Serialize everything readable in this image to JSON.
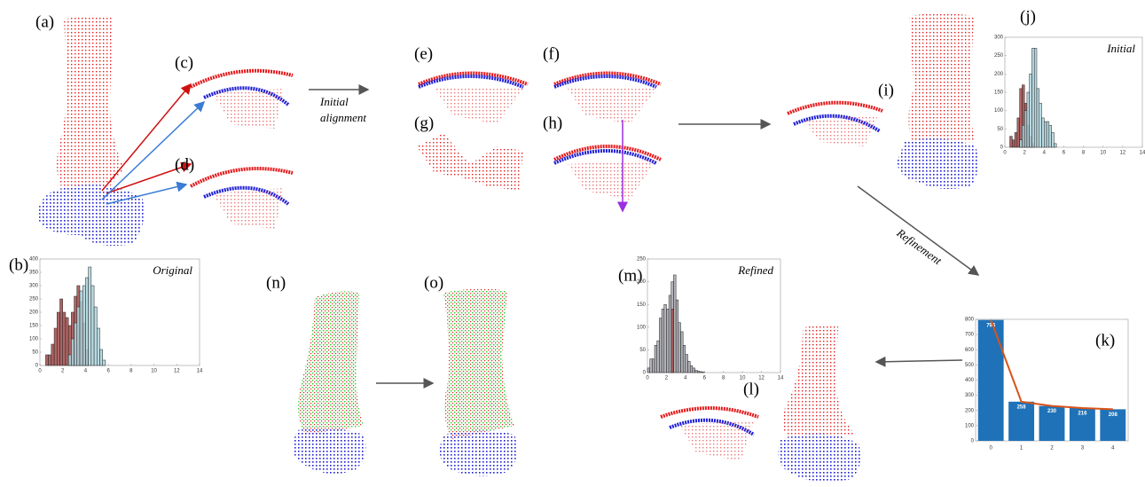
{
  "panels": [
    "(a)",
    "(b)",
    "(c)",
    "(d)",
    "(e)",
    "(f)",
    "(g)",
    "(h)",
    "(i)",
    "(j)",
    "(k)",
    "(l)",
    "(m)",
    "(n)",
    "(o)"
  ],
  "annotations": {
    "initial_alignment": [
      "Initial",
      "alignment"
    ],
    "refinement": "Refinement"
  },
  "chart_data": [
    {
      "type": "histogram",
      "annotation": "Original",
      "bins": [
        0.5,
        0.75,
        1,
        1.25,
        1.5,
        1.75,
        2,
        2.25,
        2.5,
        2.75,
        3,
        3.25,
        3.5,
        3.75,
        4,
        4.25,
        4.5,
        4.75,
        5,
        5.25,
        5.5,
        5.75,
        6
      ],
      "series": [
        {
          "color": "#a04a4a",
          "values": [
            40,
            40,
            80,
            140,
            200,
            250,
            200,
            180,
            150,
            200,
            260,
            300,
            240,
            160,
            60,
            0,
            0,
            0,
            0,
            0,
            0,
            0
          ]
        },
        {
          "color": "#add3dd",
          "values": [
            0,
            0,
            0,
            0,
            0,
            0,
            0,
            0,
            40,
            100,
            160,
            220,
            280,
            300,
            330,
            370,
            300,
            220,
            140,
            60,
            20,
            0
          ]
        }
      ],
      "xlim": [
        0,
        14
      ],
      "xticks": [
        0,
        2,
        4,
        6,
        8,
        10,
        12,
        14
      ],
      "ylim": [
        0,
        400
      ],
      "yticks": [
        0,
        50,
        100,
        150,
        200,
        250,
        300,
        350,
        400
      ]
    },
    {
      "type": "histogram",
      "annotation": "Initial",
      "bins": [
        0.5,
        0.75,
        1,
        1.25,
        1.5,
        1.75,
        2,
        2.25,
        2.5,
        2.75,
        3,
        3.25,
        3.5,
        3.75,
        4,
        4.25,
        4.5,
        4.75,
        5,
        5.25,
        5.5,
        5.75,
        6,
        6.25,
        6.5
      ],
      "series": [
        {
          "color": "#a04a4a",
          "values": [
            30,
            20,
            40,
            80,
            160,
            170,
            120,
            60,
            30,
            10,
            0,
            0,
            0,
            0,
            0,
            0,
            0,
            0,
            0,
            0,
            0,
            0,
            0,
            0
          ]
        },
        {
          "color": "#add3dd",
          "values": [
            0,
            0,
            0,
            0,
            20,
            60,
            100,
            150,
            200,
            270,
            270,
            160,
            120,
            80,
            70,
            70,
            60,
            40,
            10,
            0,
            0,
            0,
            0,
            0
          ]
        }
      ],
      "xlim": [
        0,
        14
      ],
      "xticks": [
        0,
        2,
        4,
        6,
        8,
        10,
        12,
        14
      ],
      "ylim": [
        0,
        300
      ],
      "yticks": [
        0,
        50,
        100,
        150,
        200,
        250,
        300
      ]
    },
    {
      "type": "histogram",
      "annotation": "Refined",
      "bins": [
        0,
        0.25,
        0.5,
        0.75,
        1,
        1.25,
        1.5,
        1.75,
        2,
        2.25,
        2.5,
        2.75,
        3,
        3.25,
        3.5,
        3.75,
        4,
        4.25,
        4.5,
        4.75,
        5,
        5.25,
        5.5,
        5.75,
        6
      ],
      "series": [
        {
          "color": "#a6a6ae",
          "values": [
            10,
            30,
            30,
            60,
            70,
            120,
            140,
            150,
            140,
            170,
            200,
            215,
            160,
            110,
            90,
            60,
            40,
            25,
            15,
            10,
            5,
            3,
            2,
            1
          ]
        },
        {
          "color": "#a04a4a",
          "values": [
            0,
            0,
            0,
            0,
            0,
            0,
            0,
            0,
            0,
            0,
            140,
            0,
            0,
            0,
            0,
            0,
            0,
            0,
            0,
            0,
            0,
            0,
            0,
            0
          ]
        }
      ],
      "xlim": [
        0,
        14
      ],
      "xticks": [
        0,
        2,
        4,
        6,
        8,
        10,
        12,
        14
      ],
      "ylim": [
        0,
        250
      ],
      "yticks": [
        0,
        50,
        100,
        150,
        200,
        250
      ]
    },
    {
      "type": "bar",
      "categories": [
        "0",
        "1",
        "2",
        "3",
        "4"
      ],
      "values": [
        796,
        258,
        230,
        216,
        208
      ],
      "color": "#1f72b8",
      "line_color": "#d95319",
      "ylim": [
        0,
        800
      ],
      "yticks": [
        0,
        100,
        200,
        300,
        400,
        500,
        600,
        700,
        800
      ]
    }
  ]
}
